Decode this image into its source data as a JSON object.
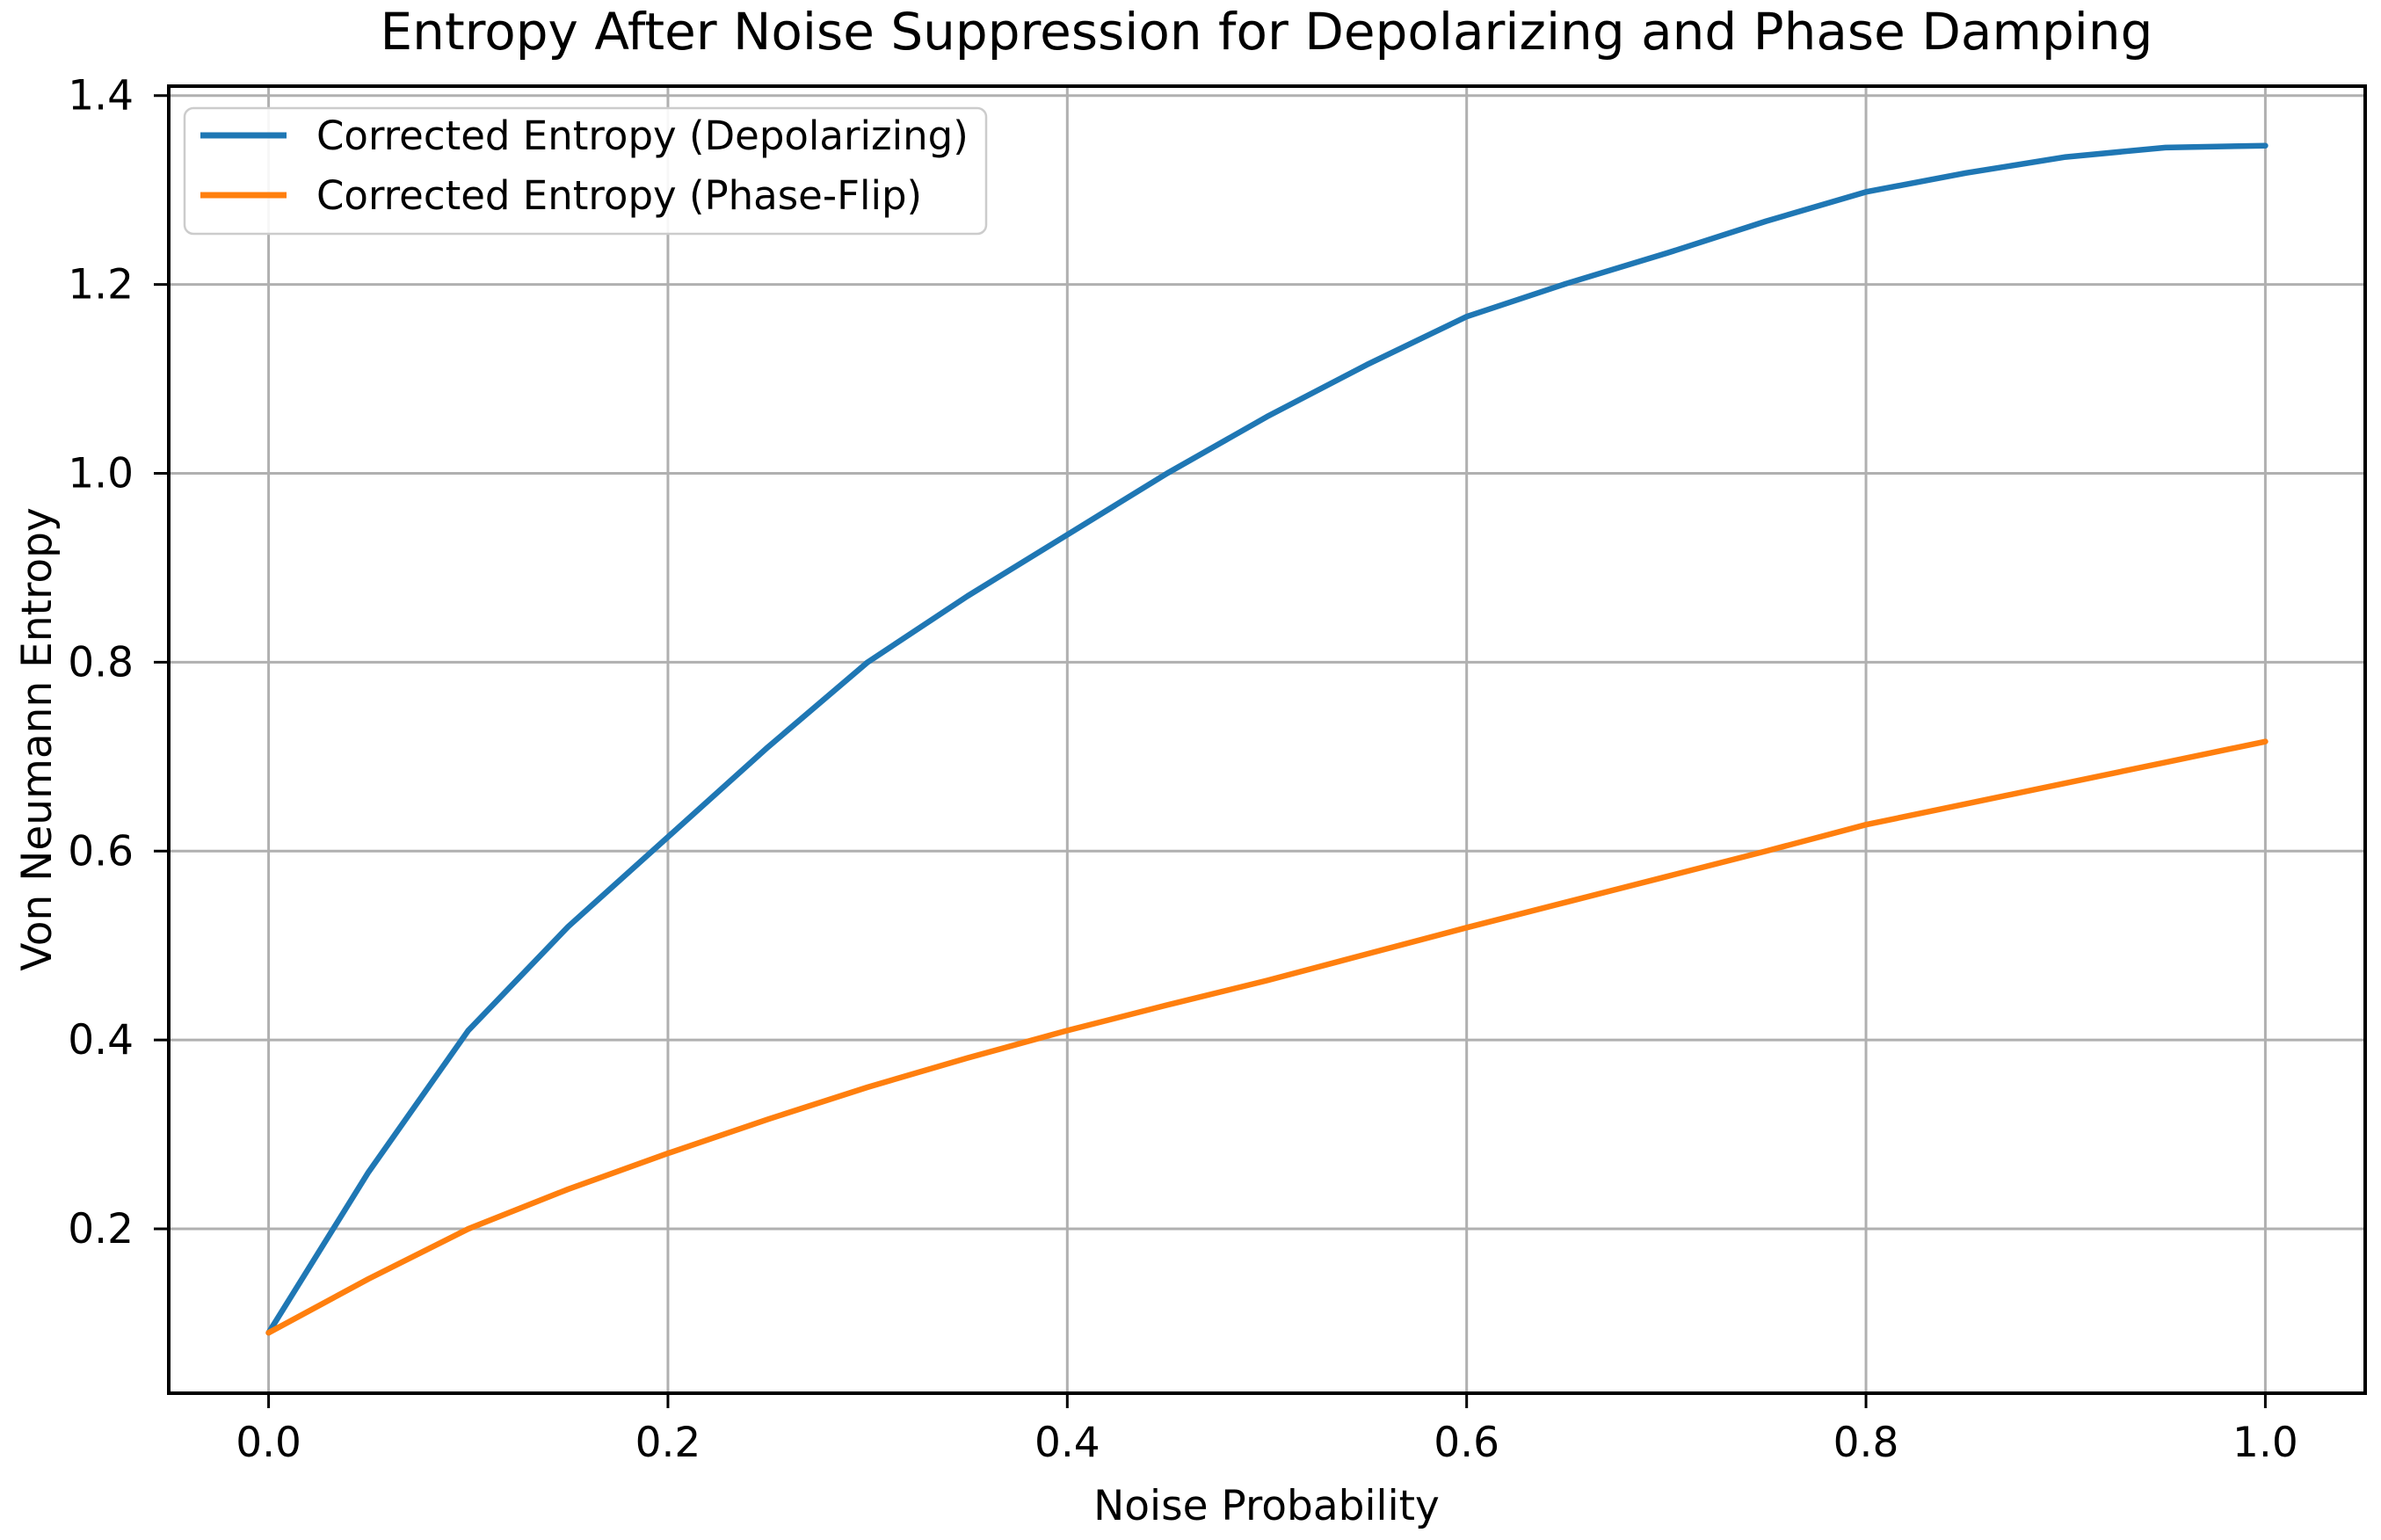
{
  "chart_data": {
    "type": "line",
    "title": "Entropy After Noise Suppression for Depolarizing and Phase Damping",
    "xlabel": "Noise Probability",
    "ylabel": "Von Neumann Entropy",
    "grid": true,
    "legend_position": "upper left",
    "xlim": [
      -0.05,
      1.05
    ],
    "ylim": [
      0.026,
      1.41
    ],
    "x_ticks": [
      0.0,
      0.2,
      0.4,
      0.6,
      0.8,
      1.0
    ],
    "x_tick_labels": [
      "0.0",
      "0.2",
      "0.4",
      "0.6",
      "0.8",
      "1.0"
    ],
    "y_ticks": [
      0.2,
      0.4,
      0.6,
      0.8,
      1.0,
      1.2,
      1.4
    ],
    "y_tick_labels": [
      "0.2",
      "0.4",
      "0.6",
      "0.8",
      "1.0",
      "1.2",
      "1.4"
    ],
    "x": [
      0.0,
      0.05,
      0.1,
      0.15,
      0.2,
      0.25,
      0.3,
      0.35,
      0.4,
      0.45,
      0.5,
      0.55,
      0.6,
      0.65,
      0.7,
      0.75,
      0.8,
      0.85,
      0.9,
      0.95,
      1.0
    ],
    "series": [
      {
        "name": "Corrected Entropy (Depolarizing)",
        "color": "#1f77b4",
        "values": [
          0.09,
          0.26,
          0.41,
          0.52,
          0.615,
          0.71,
          0.8,
          0.87,
          0.935,
          1.0,
          1.06,
          1.115,
          1.166,
          1.201,
          1.233,
          1.267,
          1.298,
          1.318,
          1.335,
          1.345,
          1.347
        ]
      },
      {
        "name": "Corrected Entropy (Phase-Flip)",
        "color": "#ff7f0e",
        "values": [
          0.09,
          0.147,
          0.2,
          0.242,
          0.28,
          0.316,
          0.35,
          0.381,
          0.41,
          0.437,
          0.463,
          0.491,
          0.519,
          0.546,
          0.573,
          0.6,
          0.628,
          0.65,
          0.672,
          0.694,
          0.716
        ]
      }
    ],
    "grid_color": "#b0b0b0",
    "spine_color": "#000000",
    "legend_border_color": "#cccccc"
  }
}
